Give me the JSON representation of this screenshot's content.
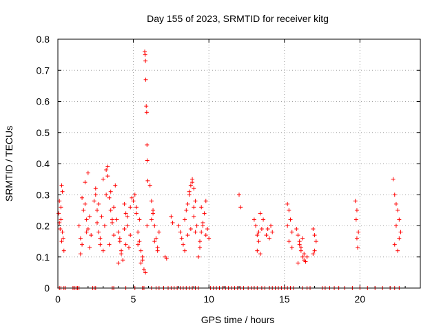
{
  "chart_data": {
    "type": "scatter",
    "title": "Day 155 of 2023, SRMTID for receiver kitg",
    "xlabel": "GPS time / hours",
    "ylabel": "SRMTID / TECUs",
    "xlim": [
      0,
      24
    ],
    "ylim": [
      0,
      0.8
    ],
    "xticks": [
      0,
      5,
      10,
      15,
      20
    ],
    "xtick_labels": [
      "0",
      "5",
      "10",
      "15",
      "20"
    ],
    "yticks": [
      0,
      0.1,
      0.2,
      0.3,
      0.4,
      0.5,
      0.6,
      0.7,
      0.8
    ],
    "ytick_labels": [
      "0",
      "0.1",
      "0.2",
      "0.3",
      "0.4",
      "0.5",
      "0.6",
      "0.7",
      "0.8"
    ],
    "grid": true,
    "marker": "+",
    "color": "#ff0000",
    "series": [
      {
        "name": "SRMTID",
        "x": [
          0.05,
          0.1,
          0.15,
          0.2,
          0.25,
          0.3,
          0.35,
          0.4,
          0.1,
          0.2,
          0.3,
          0.25,
          1.4,
          1.5,
          1.6,
          1.7,
          1.8,
          1.9,
          2.0,
          2.1,
          2.2,
          1.6,
          1.8,
          2.0,
          2.1,
          1.5,
          1.9,
          2.4,
          2.5,
          2.6,
          2.7,
          2.8,
          2.9,
          3.0,
          3.1,
          2.6,
          2.8,
          3.0,
          2.5,
          2.7,
          3.2,
          3.3,
          3.4,
          3.5,
          3.6,
          3.7,
          3.8,
          3.3,
          3.5,
          3.6,
          3.4,
          3.7,
          3.2,
          3.9,
          4.0,
          4.1,
          4.2,
          4.3,
          4.4,
          4.5,
          4.6,
          4.7,
          4.8,
          4.9,
          4.0,
          4.2,
          4.4,
          4.6,
          4.8,
          4.1,
          4.5,
          5.0,
          5.1,
          5.2,
          5.3,
          5.4,
          5.5,
          5.6,
          5.7,
          5.8,
          5.9,
          5.2,
          5.4,
          5.6,
          5.3,
          5.5,
          5.75,
          5.78,
          5.8,
          5.82,
          5.85,
          5.88,
          5.9,
          5.92,
          5.95,
          6.1,
          6.2,
          6.3,
          6.4,
          6.5,
          6.6,
          6.7,
          6.2,
          6.4,
          6.6,
          6.3,
          7.1,
          7.2,
          7.5,
          7.6,
          8.0,
          8.1,
          8.2,
          8.3,
          8.4,
          8.5,
          8.6,
          8.7,
          8.8,
          8.9,
          9.0,
          9.1,
          9.2,
          8.4,
          8.6,
          8.8,
          9.0,
          8.7,
          8.9,
          9.1,
          9.0,
          9.3,
          9.4,
          9.5,
          9.6,
          9.7,
          9.8,
          9.9,
          10.0,
          9.4,
          9.6,
          9.8,
          9.5,
          12.0,
          12.1,
          13.0,
          13.1,
          13.2,
          13.3,
          13.4,
          13.5,
          13.6,
          13.2,
          13.4,
          13.3,
          13.8,
          13.9,
          14.0,
          14.1,
          14.2,
          15.2,
          15.3,
          15.4,
          15.5,
          15.3,
          15.5,
          15.2,
          15.8,
          15.9,
          16.0,
          16.1,
          16.2,
          16.3,
          16.4,
          16.5,
          15.9,
          16.1,
          16.3,
          16.0,
          16.2,
          16.9,
          17.0,
          17.1,
          17.0,
          16.9,
          19.7,
          19.8,
          19.9,
          19.75,
          19.85,
          19.8,
          22.2,
          22.3,
          22.4,
          22.5,
          22.6,
          22.7,
          22.3,
          22.5,
          22.4,
          22.6,
          0.1,
          0.2,
          0.4,
          0.5,
          1.0,
          1.1,
          1.2,
          1.3,
          1.4,
          2.3,
          2.4,
          2.5,
          3.6,
          3.7,
          4.5,
          5.1,
          5.6,
          5.7,
          6.2,
          6.5,
          6.7,
          7.0,
          7.3,
          7.5,
          7.7,
          7.9,
          8.1,
          8.3,
          8.5,
          8.7,
          8.9,
          9.1,
          9.3,
          10.1,
          10.3,
          10.5,
          10.7,
          10.9,
          11.1,
          11.3,
          11.5,
          11.7,
          11.9,
          12.1,
          12.3,
          12.6,
          12.8,
          13.0,
          13.2,
          13.5,
          13.7,
          14.0,
          14.2,
          14.4,
          14.6,
          14.8,
          15.0,
          15.2,
          15.4,
          15.6,
          16.2,
          16.5,
          16.7,
          17.5,
          17.7,
          18.0,
          18.3,
          18.6,
          19.0,
          19.5,
          20.0,
          20.5,
          21.0,
          21.5,
          22.0,
          22.3,
          22.6
        ],
        "y": [
          0.24,
          0.21,
          0.19,
          0.26,
          0.33,
          0.31,
          0.16,
          0.12,
          0.28,
          0.22,
          0.18,
          0.15,
          0.2,
          0.16,
          0.14,
          0.25,
          0.27,
          0.22,
          0.19,
          0.13,
          0.17,
          0.29,
          0.34,
          0.37,
          0.23,
          0.11,
          0.18,
          0.28,
          0.3,
          0.21,
          0.18,
          0.14,
          0.23,
          0.35,
          0.2,
          0.25,
          0.16,
          0.12,
          0.32,
          0.27,
          0.38,
          0.39,
          0.29,
          0.25,
          0.21,
          0.17,
          0.33,
          0.36,
          0.31,
          0.22,
          0.14,
          0.26,
          0.3,
          0.22,
          0.18,
          0.15,
          0.11,
          0.09,
          0.27,
          0.24,
          0.2,
          0.13,
          0.17,
          0.29,
          0.08,
          0.12,
          0.19,
          0.23,
          0.26,
          0.16,
          0.14,
          0.28,
          0.3,
          0.24,
          0.18,
          0.15,
          0.12,
          0.09,
          0.06,
          0.05,
          0.2,
          0.26,
          0.22,
          0.1,
          0.14,
          0.08,
          0.76,
          0.75,
          0.73,
          0.67,
          0.585,
          0.565,
          0.46,
          0.41,
          0.345,
          0.33,
          0.28,
          0.24,
          0.2,
          0.16,
          0.13,
          0.18,
          0.22,
          0.15,
          0.12,
          0.25,
          0.1,
          0.095,
          0.23,
          0.21,
          0.2,
          0.18,
          0.16,
          0.14,
          0.22,
          0.25,
          0.27,
          0.3,
          0.33,
          0.35,
          0.32,
          0.28,
          0.2,
          0.12,
          0.17,
          0.19,
          0.23,
          0.31,
          0.34,
          0.18,
          0.26,
          0.1,
          0.15,
          0.18,
          0.2,
          0.24,
          0.28,
          0.19,
          0.16,
          0.13,
          0.21,
          0.17,
          0.26,
          0.3,
          0.26,
          0.22,
          0.2,
          0.17,
          0.15,
          0.11,
          0.19,
          0.22,
          0.12,
          0.24,
          0.18,
          0.17,
          0.19,
          0.16,
          0.2,
          0.18,
          0.27,
          0.25,
          0.22,
          0.18,
          0.15,
          0.13,
          0.2,
          0.19,
          0.17,
          0.14,
          0.12,
          0.1,
          0.09,
          0.085,
          0.1,
          0.08,
          0.13,
          0.11,
          0.15,
          0.16,
          0.19,
          0.17,
          0.15,
          0.12,
          0.11,
          0.28,
          0.25,
          0.18,
          0.22,
          0.13,
          0.16,
          0.35,
          0.3,
          0.27,
          0.25,
          0.22,
          0.18,
          0.14,
          0.12,
          0.2,
          0.16,
          0,
          0,
          0,
          0,
          0,
          0,
          0,
          0,
          0,
          0,
          0,
          0,
          0,
          0,
          0,
          0,
          0,
          0,
          0,
          0,
          0,
          0,
          0,
          0,
          0,
          0,
          0,
          0,
          0,
          0,
          0,
          0,
          0,
          0,
          0,
          0,
          0,
          0,
          0,
          0,
          0,
          0,
          0,
          0,
          0,
          0,
          0,
          0,
          0,
          0,
          0,
          0,
          0,
          0,
          0,
          0,
          0,
          0,
          0,
          0,
          0,
          0,
          0,
          0,
          0,
          0,
          0,
          0,
          0,
          0,
          0,
          0,
          0,
          0,
          0,
          0,
          0
        ]
      }
    ]
  }
}
